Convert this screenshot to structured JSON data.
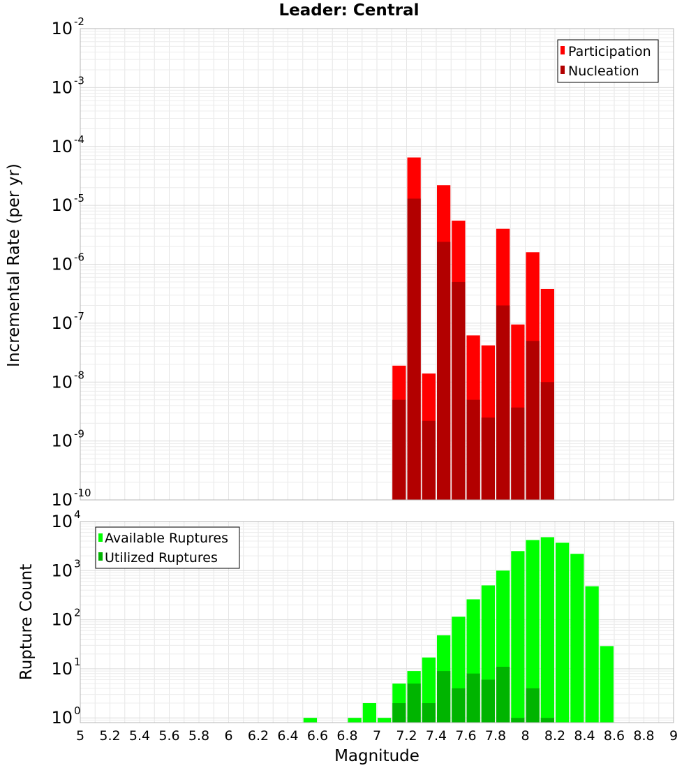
{
  "chart_data": [
    {
      "type": "bar",
      "title": "Leader: Central",
      "xlabel": "",
      "ylabel": "Incremental Rate (per yr)",
      "yscale": "log",
      "xlim": [
        5,
        9
      ],
      "ylim": [
        1e-10,
        0.01
      ],
      "y_tick_exponents": [
        -10,
        -9,
        -8,
        -7,
        -6,
        -5,
        -4,
        -3,
        -2
      ],
      "grid": true,
      "legend_position": "top-right",
      "x": [
        7.15,
        7.25,
        7.35,
        7.45,
        7.55,
        7.65,
        7.75,
        7.85,
        7.95,
        8.05,
        8.15
      ],
      "series": [
        {
          "name": "Participation",
          "color": "#ff0000",
          "values": [
            1.9e-08,
            6.5e-05,
            1.4e-08,
            2.2e-05,
            5.5e-06,
            6.2e-08,
            4.2e-08,
            4e-06,
            9.5e-08,
            1.6e-06,
            3.8e-07
          ]
        },
        {
          "name": "Nucleation",
          "color": "#b20000",
          "values": [
            5e-09,
            1.3e-05,
            2.2e-09,
            2.4e-06,
            5e-07,
            5e-09,
            2.5e-09,
            2e-07,
            3.7e-09,
            5e-08,
            1e-08
          ]
        }
      ]
    },
    {
      "type": "bar",
      "title": "",
      "xlabel": "Magnitude",
      "ylabel": "Rupture Count",
      "yscale": "log",
      "xlim": [
        5,
        9
      ],
      "ylim": [
        0.8,
        10000
      ],
      "y_tick_exponents": [
        0,
        1,
        2,
        3,
        4
      ],
      "x_ticks": [
        "5",
        "5.2",
        "5.4",
        "5.6",
        "5.8",
        "6",
        "6.2",
        "6.4",
        "6.6",
        "6.8",
        "7",
        "7.2",
        "7.4",
        "7.6",
        "7.8",
        "8",
        "8.2",
        "8.4",
        "8.6",
        "8.8",
        "9"
      ],
      "grid": true,
      "legend_position": "top-left",
      "x": [
        6.55,
        6.85,
        6.95,
        7.05,
        7.15,
        7.25,
        7.35,
        7.45,
        7.55,
        7.65,
        7.75,
        7.85,
        7.95,
        8.05,
        8.15,
        8.25,
        8.35,
        8.45,
        8.55
      ],
      "series": [
        {
          "name": "Available Ruptures",
          "color": "#00ff00",
          "values": [
            1,
            1,
            2,
            1,
            5,
            9,
            17,
            48,
            115,
            260,
            500,
            1000,
            2500,
            4200,
            4800,
            3700,
            2200,
            480,
            29
          ]
        },
        {
          "name": "Utilized Ruptures",
          "color": "#00b400",
          "values": [
            0,
            0,
            0,
            0,
            2,
            5,
            2,
            9,
            4,
            8,
            6,
            11,
            1,
            4,
            1,
            0,
            0,
            0,
            0
          ]
        }
      ]
    }
  ]
}
